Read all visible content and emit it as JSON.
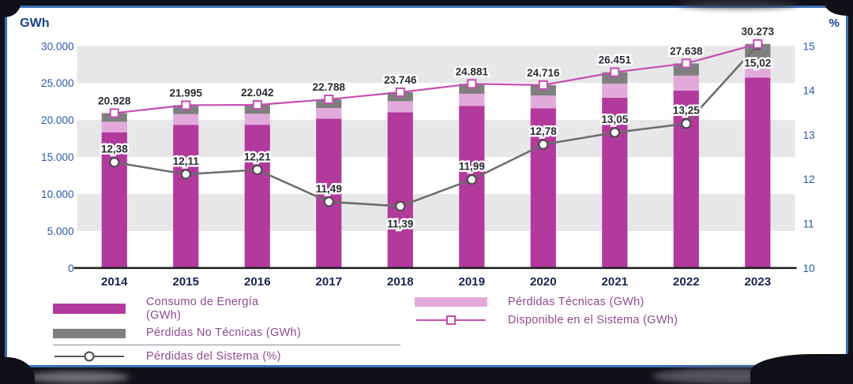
{
  "frame": {
    "border_color": "#3b6db5",
    "background_color": "#101018"
  },
  "chart_data": {
    "type": "combo-stacked-bar-line",
    "categories": [
      "2014",
      "2015",
      "2016",
      "2017",
      "2018",
      "2019",
      "2020",
      "2021",
      "2022",
      "2023"
    ],
    "unit_left": "GWh",
    "unit_right": "%",
    "ylim_left": [
      0,
      30000
    ],
    "yticks_left": [
      "0",
      "5.000",
      "10.000",
      "15.000",
      "20.000",
      "25.000",
      "30.000"
    ],
    "ylim_right": [
      10,
      15
    ],
    "yticks_right": [
      "10",
      "11",
      "12",
      "13",
      "14",
      "15"
    ],
    "bands_gray_ranges": [
      [
        5000,
        10000
      ],
      [
        15000,
        20000
      ],
      [
        25000,
        30000
      ]
    ],
    "colors": {
      "consumo": "#b13a9c",
      "tecnicas": "#e2aadb",
      "no_tecnicas": "#7f7f7f",
      "disponible_line": "#c44fb0",
      "perdidas_line": "#6b6b6b",
      "tick_text": "#2a57a8",
      "year_text": "#16254e",
      "value_label": "#2b2b33"
    },
    "series": [
      {
        "name": "Consumo de Energía (GWh)",
        "type": "bar",
        "values": [
          18337,
          19332,
          19351,
          20170,
          21041,
          21898,
          21557,
          23000,
          23976,
          25726
        ]
      },
      {
        "name": "Pérdidas Técnicas (GWh)",
        "type": "bar",
        "values": [
          1425,
          1465,
          1480,
          1440,
          1490,
          1640,
          1740,
          1900,
          2015,
          2500
        ]
      },
      {
        "name": "Pérdidas No Técnicas (GWh)",
        "type": "bar",
        "values": [
          1166,
          1198,
          1211,
          1178,
          1215,
          1343,
          1419,
          1551,
          1647,
          2047
        ]
      },
      {
        "name": "Disponible en el Sistema (GWh)",
        "type": "line",
        "axis": "left",
        "values": [
          20928,
          21995,
          22042,
          22788,
          23746,
          24881,
          24716,
          26451,
          27638,
          30273
        ],
        "labels": [
          "20.928",
          "21.995",
          "22.042",
          "22.788",
          "23.746",
          "24.881",
          "24.716",
          "26.451",
          "27.638",
          "30.273"
        ]
      },
      {
        "name": "Pérdidas del Sistema (%)",
        "type": "line",
        "axis": "right",
        "values": [
          12.38,
          12.11,
          12.21,
          11.49,
          11.39,
          11.99,
          12.78,
          13.05,
          13.25,
          15.02
        ],
        "labels": [
          "12,38",
          "12,11",
          "12,21",
          "11,49",
          "11,39",
          "11,99",
          "12,78",
          "13,05",
          "13,25",
          "15,02"
        ]
      }
    ]
  }
}
